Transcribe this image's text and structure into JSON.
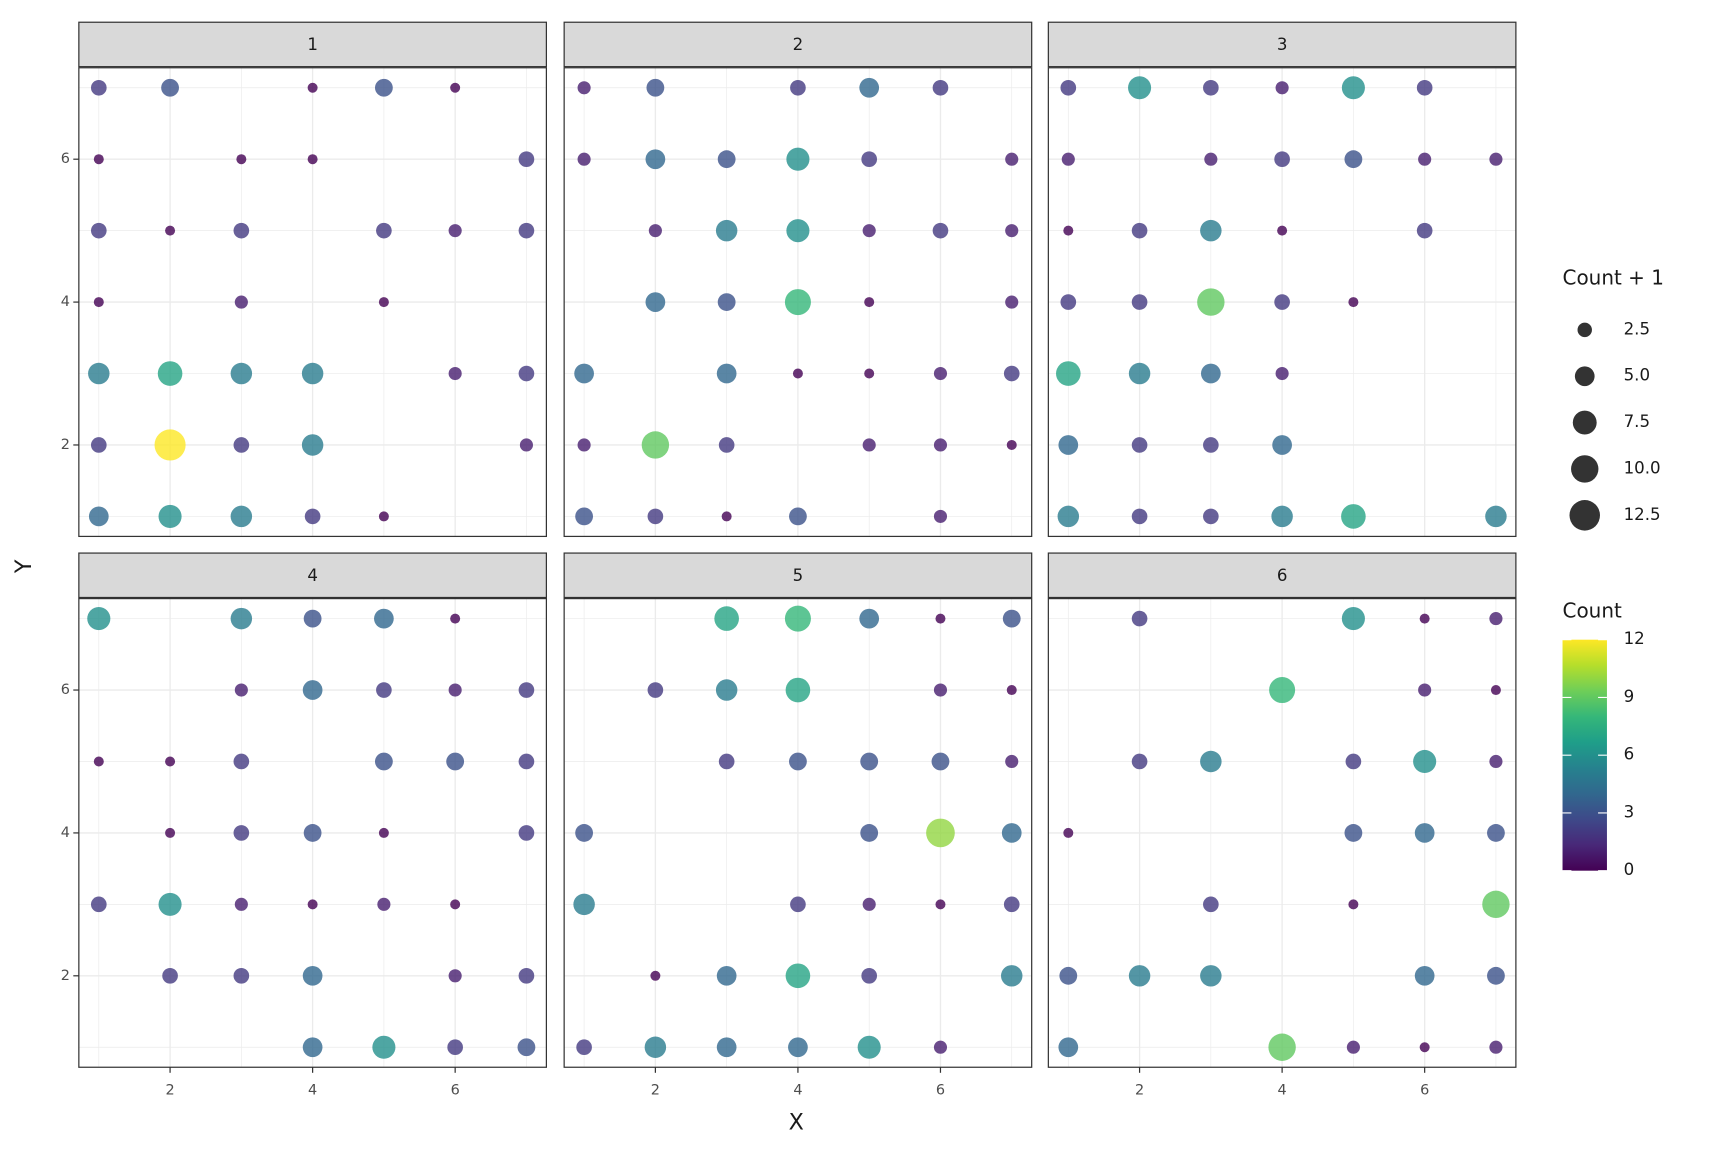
{
  "chart_data": {
    "type": "scatter",
    "x_label": "X",
    "y_label": "Y",
    "xlim": [
      0.72,
      7.28
    ],
    "ylim": [
      0.72,
      7.28
    ],
    "xticks": [
      2,
      4,
      6
    ],
    "yticks": [
      2,
      4,
      6
    ],
    "minor_ticks": [
      1,
      3,
      5,
      7
    ],
    "grid": true,
    "alpha": 0.8,
    "size_title": "Count + 1",
    "size_ticks": [
      2.5,
      {
        "value": 5,
        "label": "5.0"
      },
      7.5,
      {
        "value": 10,
        "label": "10.0"
      },
      12.5
    ],
    "color_title": "Count",
    "colorlim": [
      0,
      12
    ],
    "color_ticks": [
      0,
      3,
      6,
      9,
      12
    ],
    "palette": [
      "#440154",
      "#482878",
      "#3e4989",
      "#31688e",
      "#26828e",
      "#1f9e89",
      "#35b779",
      "#6ece58",
      "#b5de2b",
      "#fde725"
    ],
    "facets": [
      {
        "label": "1",
        "x": [
          1,
          2,
          4,
          5,
          6,
          1,
          3,
          4,
          7,
          1,
          2,
          3,
          5,
          6,
          7,
          1,
          3,
          5,
          1,
          2,
          3,
          4,
          6,
          7,
          1,
          2,
          3,
          4,
          7,
          1,
          2,
          3,
          4,
          5
        ],
        "y": [
          7,
          7,
          7,
          7,
          7,
          6,
          6,
          6,
          6,
          5,
          5,
          5,
          5,
          5,
          5,
          4,
          4,
          4,
          3,
          3,
          3,
          3,
          3,
          3,
          2,
          2,
          2,
          2,
          2,
          1,
          1,
          1,
          1,
          1
        ],
        "values": [
          2,
          3,
          0,
          3,
          0,
          0,
          0,
          0,
          2,
          2,
          0,
          2,
          2,
          1,
          2,
          0,
          1,
          0,
          5,
          7,
          5,
          5,
          1,
          2,
          2,
          12,
          2,
          5,
          1,
          4,
          6,
          5,
          2,
          0
        ]
      },
      {
        "label": "2",
        "x": [
          1,
          2,
          4,
          5,
          6,
          1,
          2,
          3,
          4,
          5,
          7,
          2,
          3,
          4,
          5,
          6,
          7,
          2,
          3,
          4,
          5,
          7,
          1,
          3,
          4,
          5,
          6,
          7,
          1,
          2,
          3,
          5,
          6,
          7,
          1,
          2,
          3,
          4,
          6
        ],
        "y": [
          7,
          7,
          7,
          7,
          7,
          6,
          6,
          6,
          6,
          6,
          6,
          5,
          5,
          5,
          5,
          5,
          5,
          4,
          4,
          4,
          4,
          4,
          3,
          3,
          3,
          3,
          3,
          3,
          2,
          2,
          2,
          2,
          2,
          2,
          1,
          1,
          1,
          1,
          1
        ],
        "values": [
          1,
          3,
          2,
          4,
          2,
          1,
          4,
          3,
          6,
          2,
          1,
          1,
          5,
          6,
          1,
          2,
          1,
          4,
          3,
          8,
          0,
          1,
          4,
          4,
          0,
          0,
          1,
          2,
          1,
          9,
          2,
          1,
          1,
          0,
          3,
          2,
          0,
          3,
          1
        ]
      },
      {
        "label": "3",
        "x": [
          1,
          2,
          3,
          4,
          5,
          6,
          1,
          3,
          4,
          5,
          6,
          7,
          1,
          2,
          3,
          4,
          6,
          1,
          2,
          3,
          4,
          5,
          1,
          2,
          3,
          4,
          1,
          2,
          3,
          4,
          1,
          2,
          3,
          4,
          5,
          7
        ],
        "y": [
          7,
          7,
          7,
          7,
          7,
          7,
          6,
          6,
          6,
          6,
          6,
          6,
          5,
          5,
          5,
          5,
          5,
          4,
          4,
          4,
          4,
          4,
          3,
          3,
          3,
          3,
          2,
          2,
          2,
          2,
          1,
          1,
          1,
          1,
          1,
          1
        ],
        "values": [
          2,
          6,
          2,
          1,
          6,
          2,
          1,
          1,
          2,
          3,
          1,
          1,
          0,
          2,
          5,
          0,
          2,
          2,
          2,
          9,
          2,
          0,
          7,
          5,
          4,
          1,
          4,
          2,
          2,
          4,
          5,
          2,
          2,
          5,
          7,
          5
        ]
      },
      {
        "label": "4",
        "x": [
          1,
          3,
          4,
          5,
          6,
          3,
          4,
          5,
          6,
          7,
          1,
          2,
          3,
          5,
          6,
          7,
          2,
          3,
          4,
          5,
          7,
          1,
          2,
          3,
          4,
          5,
          6,
          2,
          3,
          4,
          6,
          7,
          4,
          5,
          6,
          7
        ],
        "y": [
          7,
          7,
          7,
          7,
          7,
          6,
          6,
          6,
          6,
          6,
          5,
          5,
          5,
          5,
          5,
          5,
          4,
          4,
          4,
          4,
          4,
          3,
          3,
          3,
          3,
          3,
          3,
          2,
          2,
          2,
          2,
          2,
          1,
          1,
          1,
          1
        ],
        "values": [
          6,
          5,
          3,
          4,
          0,
          1,
          4,
          2,
          1,
          2,
          0,
          0,
          2,
          3,
          3,
          2,
          0,
          2,
          3,
          0,
          2,
          2,
          6,
          1,
          0,
          1,
          0,
          2,
          2,
          4,
          1,
          2,
          4,
          6,
          2,
          3
        ]
      },
      {
        "label": "5",
        "x": [
          3,
          4,
          5,
          6,
          7,
          2,
          3,
          4,
          6,
          7,
          3,
          4,
          5,
          6,
          7,
          1,
          5,
          6,
          7,
          1,
          4,
          5,
          6,
          7,
          2,
          3,
          4,
          5,
          7,
          1,
          2,
          3,
          4,
          5,
          6
        ],
        "y": [
          7,
          7,
          7,
          7,
          7,
          6,
          6,
          6,
          6,
          6,
          5,
          5,
          5,
          5,
          5,
          4,
          4,
          4,
          4,
          3,
          3,
          3,
          3,
          3,
          2,
          2,
          2,
          2,
          2,
          1,
          1,
          1,
          1,
          1,
          1
        ],
        "values": [
          7,
          8,
          4,
          0,
          3,
          2,
          5,
          7,
          1,
          0,
          2,
          3,
          3,
          3,
          1,
          3,
          3,
          10,
          4,
          5,
          2,
          1,
          0,
          2,
          0,
          4,
          7,
          2,
          5,
          2,
          5,
          4,
          4,
          6,
          1
        ]
      },
      {
        "label": "6",
        "x": [
          2,
          5,
          6,
          7,
          4,
          6,
          7,
          2,
          3,
          5,
          6,
          7,
          1,
          5,
          6,
          7,
          3,
          5,
          7,
          1,
          2,
          3,
          6,
          7,
          1,
          4,
          5,
          6,
          7
        ],
        "y": [
          7,
          7,
          7,
          7,
          6,
          6,
          6,
          5,
          5,
          5,
          5,
          5,
          4,
          4,
          4,
          4,
          3,
          3,
          3,
          2,
          2,
          2,
          2,
          2,
          1,
          1,
          1,
          1,
          1
        ],
        "values": [
          2,
          6,
          0,
          1,
          8,
          1,
          0,
          2,
          5,
          2,
          6,
          1,
          0,
          3,
          4,
          3,
          2,
          0,
          9,
          3,
          5,
          5,
          4,
          3,
          4,
          9,
          1,
          0,
          1
        ]
      }
    ]
  }
}
